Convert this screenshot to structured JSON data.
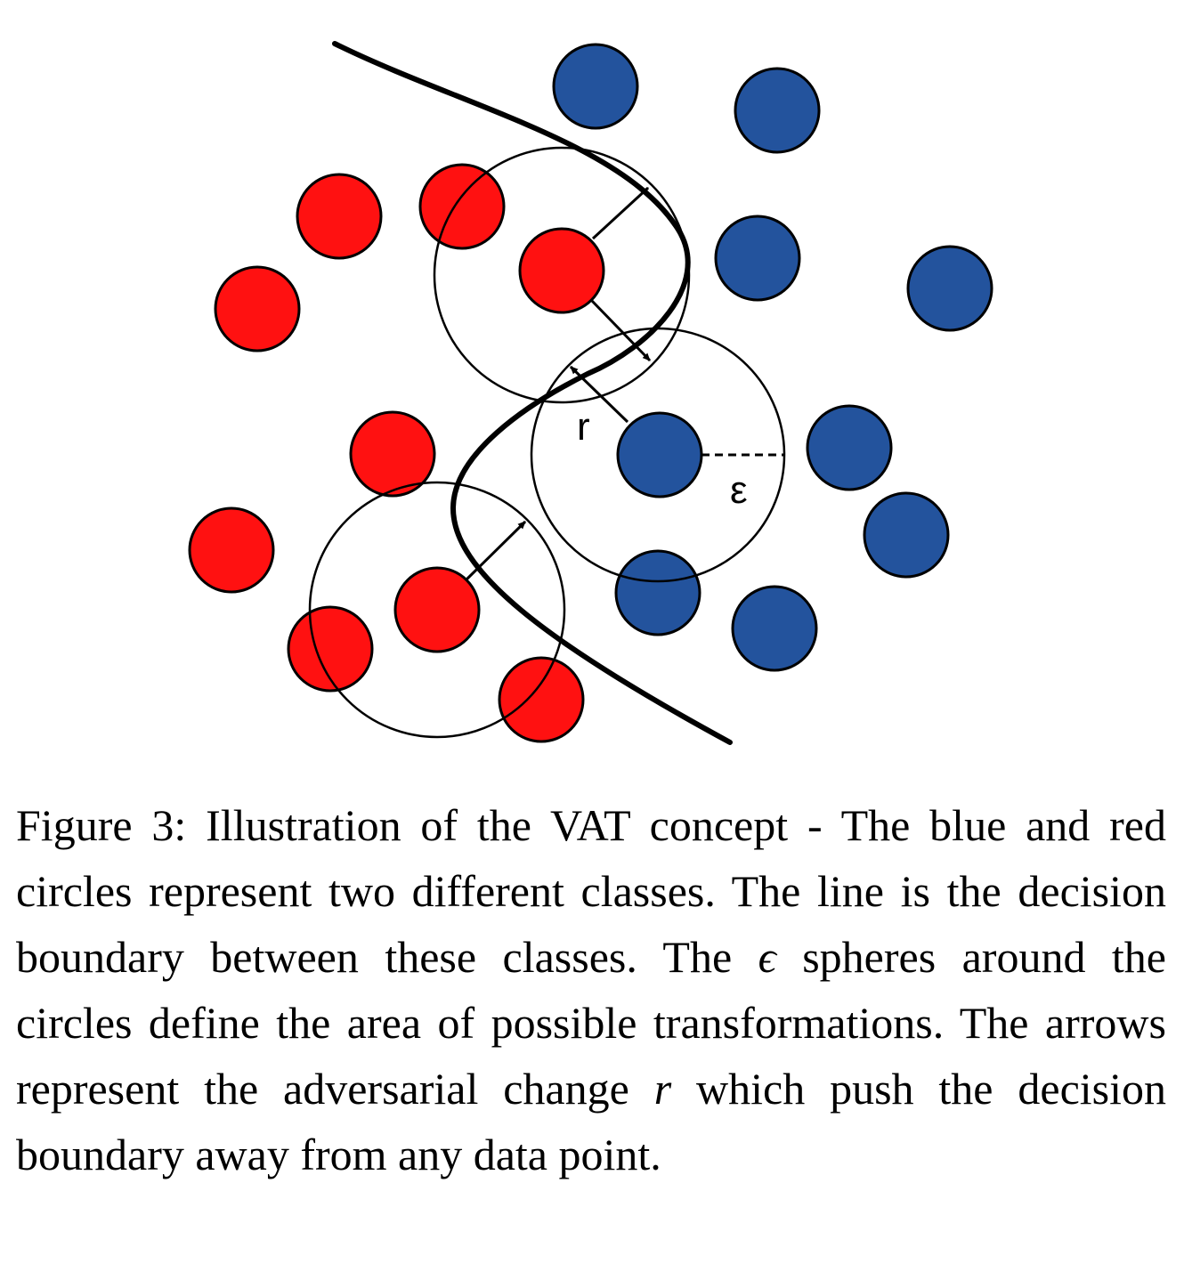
{
  "figure": {
    "labels": {
      "r": "r",
      "epsilon": "ε"
    },
    "colors": {
      "red_class": "#ff1111",
      "blue_class": "#23539d",
      "outline": "#000000"
    }
  },
  "caption": {
    "label": "Figure 3:",
    "text_1": "Illustration of the VAT concept - The blue and red circles represent two different classes. The line is the decision boundary between these classes. The",
    "symbol_epsilon": "ϵ",
    "text_2": "spheres around the circles define the area of possible transformations. The arrows represent the adversarial change",
    "symbol_r": "r",
    "text_3": "which push the decision boundary away from any data point."
  }
}
